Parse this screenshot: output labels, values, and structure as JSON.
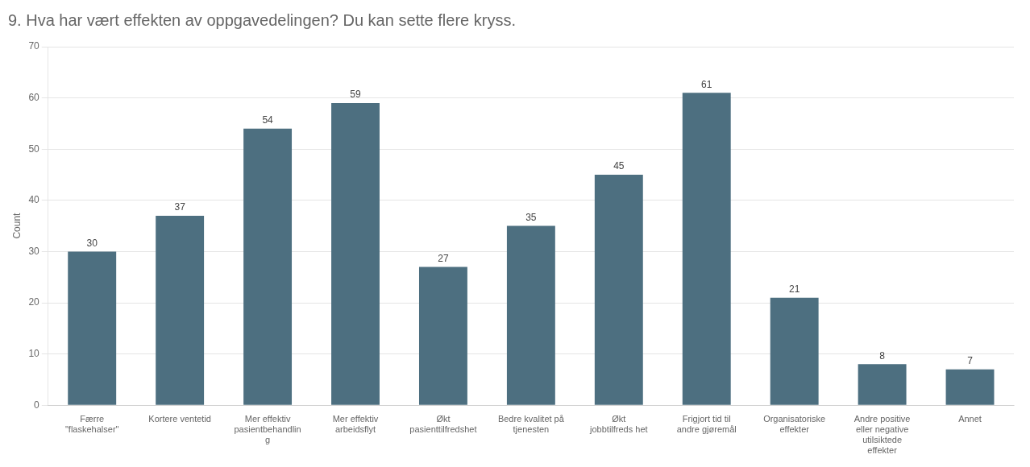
{
  "chart_data": {
    "type": "bar",
    "title": "9. Hva har vært effekten av oppgavedelingen? Du kan sette flere kryss.",
    "categories": [
      "Færre\n\"flaskehalser\"",
      "Kortere ventetid",
      "Mer effektiv\npasientbehandlin\ng",
      "Mer effektiv\narbeidsflyt",
      "Økt\npasienttilfredshet",
      "Bedre kvalitet på\ntjenesten",
      "Økt\njobbtilfreds het",
      "Frigjort tid til\nandre gjøremål",
      "Organisatoriske\neffekter",
      "Andre positive\neller negative\nutilsiktede\neffekter",
      "Annet"
    ],
    "values": [
      30,
      37,
      54,
      59,
      27,
      35,
      45,
      61,
      21,
      8,
      7
    ],
    "color": "#4d6f80",
    "ylabel": "Count",
    "ylim": [
      0,
      70
    ],
    "yticks": [
      0,
      10,
      20,
      30,
      40,
      50,
      60,
      70
    ],
    "grid": true,
    "data_labels": true
  }
}
